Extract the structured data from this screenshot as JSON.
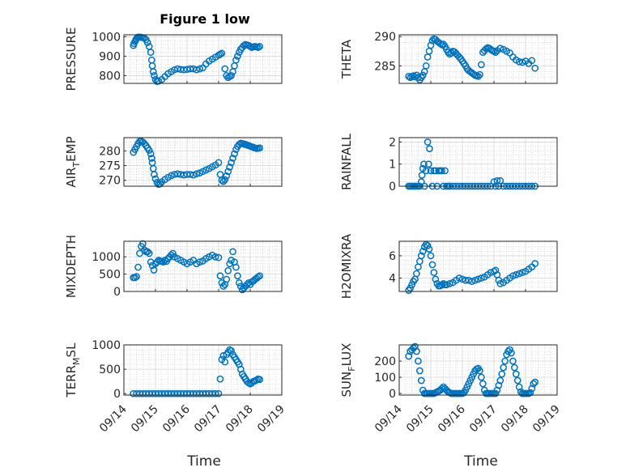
{
  "figure": {
    "title": "Figure 1 low"
  },
  "chart_data": [
    {
      "type": "scatter",
      "ylabel_main": "PRESSURE",
      "ylabel_sub": "",
      "ylabel_tail": "",
      "title": "Figure 1 low",
      "ylim": [
        760,
        1010
      ],
      "yticks": [
        800,
        900,
        1000
      ],
      "x_ticks": [],
      "x": [
        14.3,
        14.32,
        14.35,
        14.38,
        14.4,
        14.43,
        14.46,
        14.5,
        14.55,
        14.6,
        14.65,
        14.7,
        14.75,
        14.8,
        14.85,
        14.88,
        14.9,
        14.93,
        14.96,
        15.0,
        15.05,
        15.1,
        15.2,
        15.3,
        15.4,
        15.5,
        15.6,
        15.7,
        15.8,
        15.9,
        16.0,
        16.1,
        16.2,
        16.3,
        16.4,
        16.5,
        16.6,
        16.7,
        16.8,
        16.9,
        17.0,
        17.05,
        17.1,
        17.2,
        17.25,
        17.3,
        17.35,
        17.4,
        17.45,
        17.5,
        17.55,
        17.6,
        17.65,
        17.7,
        17.75,
        17.8,
        17.85,
        17.9,
        17.95,
        18.0,
        18.05,
        18.1,
        18.15,
        18.2,
        18.25,
        18.3
      ],
      "y": [
        955,
        965,
        975,
        985,
        990,
        997,
        998,
        998,
        997,
        995,
        993,
        985,
        970,
        950,
        920,
        880,
        850,
        820,
        800,
        780,
        770,
        772,
        780,
        795,
        810,
        820,
        830,
        835,
        832,
        830,
        832,
        835,
        835,
        830,
        835,
        840,
        860,
        875,
        885,
        895,
        905,
        910,
        915,
        835,
        800,
        790,
        795,
        800,
        820,
        850,
        880,
        900,
        920,
        935,
        945,
        955,
        960,
        958,
        955,
        950,
        945,
        948,
        950,
        948,
        945,
        950
      ]
    },
    {
      "type": "scatter",
      "ylabel_main": "THETA",
      "ylabel_sub": "",
      "ylabel_tail": "",
      "ylim": [
        282,
        290.3
      ],
      "yticks": [
        285,
        290
      ],
      "x_ticks": [],
      "x": [
        14.3,
        14.35,
        14.4,
        14.45,
        14.5,
        14.55,
        14.6,
        14.65,
        14.7,
        14.75,
        14.8,
        14.85,
        14.9,
        14.95,
        15.0,
        15.05,
        15.1,
        15.15,
        15.2,
        15.25,
        15.3,
        15.35,
        15.4,
        15.45,
        15.5,
        15.55,
        15.6,
        15.65,
        15.7,
        15.75,
        15.8,
        15.85,
        15.9,
        15.95,
        16.0,
        16.05,
        16.1,
        16.15,
        16.2,
        16.25,
        16.3,
        16.35,
        16.4,
        16.45,
        16.5,
        16.55,
        16.6,
        16.65,
        16.7,
        16.75,
        16.8,
        16.85,
        16.9,
        16.95,
        17.0,
        17.05,
        17.1,
        17.2,
        17.3,
        17.4,
        17.5,
        17.6,
        17.7,
        17.8,
        17.9,
        18.0,
        18.1,
        18.2,
        18.3
      ],
      "y": [
        283.2,
        283,
        283.2,
        283.3,
        283.1,
        283.4,
        283,
        282.6,
        283,
        283.4,
        284,
        285,
        286.5,
        287.5,
        288.5,
        289.3,
        289.6,
        289.5,
        289.2,
        289,
        288.8,
        288.6,
        288.7,
        288.3,
        287.8,
        287.3,
        287,
        287.2,
        287.5,
        287.4,
        287.1,
        286.8,
        286.5,
        286.2,
        285.8,
        285.4,
        285,
        284.5,
        284.2,
        284,
        283.8,
        283.6,
        283.4,
        283.3,
        283.2,
        283.5,
        285.2,
        287.3,
        287.6,
        287.9,
        288.1,
        288.0,
        287.8,
        287.6,
        287.5,
        287.3,
        287.6,
        288.0,
        287.8,
        287.5,
        287.2,
        286.5,
        286.0,
        285.7,
        285.6,
        285.8,
        285.4,
        285.9,
        284.6
      ]
    },
    {
      "type": "scatter",
      "ylabel_main": "AIR",
      "ylabel_sub": "T",
      "ylabel_tail": "EMP",
      "ylim": [
        268,
        284.5
      ],
      "yticks": [
        270,
        275,
        280
      ],
      "x_ticks": [],
      "x": [
        14.3,
        14.35,
        14.4,
        14.45,
        14.5,
        14.55,
        14.6,
        14.65,
        14.7,
        14.75,
        14.8,
        14.85,
        14.88,
        14.9,
        14.93,
        14.96,
        15.0,
        15.05,
        15.1,
        15.15,
        15.2,
        15.3,
        15.4,
        15.5,
        15.6,
        15.7,
        15.8,
        15.9,
        16.0,
        16.1,
        16.2,
        16.3,
        16.4,
        16.5,
        16.6,
        16.7,
        16.8,
        16.9,
        17.0,
        17.05,
        17.1,
        17.15,
        17.2,
        17.25,
        17.3,
        17.35,
        17.4,
        17.45,
        17.5,
        17.55,
        17.6,
        17.65,
        17.7,
        17.75,
        17.8,
        17.85,
        17.9,
        17.95,
        18.0,
        18.05,
        18.1,
        18.15,
        18.2,
        18.25,
        18.3
      ],
      "y": [
        279.5,
        280.5,
        281.5,
        282.5,
        283.2,
        283.3,
        283,
        282.5,
        281.8,
        281,
        280.2,
        279,
        277.5,
        276,
        274,
        272,
        270.5,
        269.3,
        268.6,
        268.8,
        269.5,
        270.3,
        271,
        271.6,
        272,
        272.2,
        272,
        271.8,
        272,
        272,
        271.8,
        272.2,
        272.5,
        273,
        273.5,
        274,
        274.6,
        275.2,
        276,
        272,
        270,
        269.6,
        270.2,
        271.5,
        273,
        274.5,
        276,
        277.5,
        279,
        280.5,
        281.5,
        282.2,
        282.6,
        282.5,
        282.3,
        282.2,
        282,
        281.8,
        281.6,
        281.4,
        281.2,
        281,
        280.8,
        280.9,
        281
      ]
    },
    {
      "type": "scatter",
      "ylabel_main": "RAINFALL",
      "ylabel_sub": "",
      "ylabel_tail": "",
      "ylim": [
        0,
        2.2
      ],
      "yticks": [
        0,
        1,
        2
      ],
      "x_ticks": [],
      "x": [
        14.3,
        14.35,
        14.4,
        14.45,
        14.5,
        14.55,
        14.6,
        14.65,
        14.7,
        14.72,
        14.75,
        14.78,
        14.8,
        14.85,
        14.9,
        14.93,
        14.96,
        15.0,
        15.05,
        15.1,
        15.15,
        15.2,
        15.25,
        15.3,
        15.35,
        15.4,
        15.45,
        15.5,
        15.55,
        15.6,
        15.7,
        15.8,
        15.9,
        16.0,
        16.1,
        16.2,
        16.3,
        16.4,
        16.5,
        16.6,
        16.7,
        16.8,
        16.9,
        17.0,
        17.05,
        17.1,
        17.15,
        17.2,
        17.3,
        17.4,
        17.5,
        17.6,
        17.7,
        17.8,
        17.9,
        18.0,
        18.1,
        18.2,
        18.3
      ],
      "y": [
        0,
        0,
        0,
        0,
        0,
        0,
        0,
        0,
        0.2,
        0.5,
        0.8,
        1.0,
        0,
        0.7,
        2.0,
        1.0,
        1.7,
        0.7,
        0,
        0.7,
        0.7,
        0,
        0.7,
        0.7,
        0.7,
        0,
        0.7,
        0,
        0,
        0,
        0,
        0,
        0,
        0,
        0,
        0,
        0,
        0,
        0,
        0,
        0,
        0,
        0,
        0.2,
        0,
        0.25,
        0,
        0.25,
        0,
        0,
        0,
        0,
        0,
        0,
        0,
        0,
        0,
        0,
        0
      ]
    },
    {
      "type": "scatter",
      "ylabel_main": "MIXDEPTH",
      "ylabel_sub": "",
      "ylabel_tail": "",
      "ylim": [
        0,
        1450
      ],
      "yticks": [
        0,
        500,
        1000
      ],
      "x_ticks": [],
      "x": [
        14.3,
        14.35,
        14.4,
        14.45,
        14.5,
        14.55,
        14.6,
        14.65,
        14.7,
        14.75,
        14.8,
        14.85,
        14.9,
        14.95,
        15.0,
        15.05,
        15.1,
        15.15,
        15.2,
        15.25,
        15.3,
        15.35,
        15.4,
        15.45,
        15.5,
        15.55,
        15.6,
        15.7,
        15.8,
        15.9,
        16.0,
        16.1,
        16.2,
        16.3,
        16.4,
        16.5,
        16.6,
        16.7,
        16.8,
        16.9,
        17.0,
        17.05,
        17.1,
        17.15,
        17.2,
        17.25,
        17.3,
        17.35,
        17.4,
        17.45,
        17.5,
        17.55,
        17.6,
        17.65,
        17.7,
        17.75,
        17.8,
        17.85,
        17.9,
        17.95,
        18.0,
        18.05,
        18.1,
        18.15,
        18.2,
        18.25,
        18.3
      ],
      "y": [
        400,
        400,
        430,
        700,
        1100,
        1300,
        1380,
        1200,
        1150,
        1150,
        1100,
        850,
        750,
        620,
        800,
        850,
        900,
        880,
        870,
        850,
        900,
        870,
        950,
        1000,
        1050,
        1100,
        1000,
        950,
        900,
        850,
        800,
        850,
        900,
        800,
        850,
        880,
        950,
        1000,
        1050,
        1000,
        980,
        450,
        250,
        150,
        200,
        350,
        600,
        800,
        900,
        1150,
        850,
        700,
        450,
        250,
        150,
        50,
        100,
        150,
        200,
        250,
        200,
        280,
        300,
        350,
        380,
        420,
        450
      ]
    },
    {
      "type": "scatter",
      "ylabel_main": "H2OMIXRA",
      "ylabel_sub": "",
      "ylabel_tail": "",
      "ylim": [
        2.8,
        7.3
      ],
      "yticks": [
        4,
        6
      ],
      "x_ticks": [],
      "x": [
        14.3,
        14.35,
        14.4,
        14.45,
        14.5,
        14.55,
        14.6,
        14.65,
        14.7,
        14.75,
        14.8,
        14.85,
        14.9,
        14.95,
        15.0,
        15.05,
        15.1,
        15.15,
        15.2,
        15.25,
        15.3,
        15.35,
        15.4,
        15.45,
        15.5,
        15.6,
        15.7,
        15.8,
        15.9,
        16.0,
        16.1,
        16.2,
        16.3,
        16.4,
        16.5,
        16.6,
        16.7,
        16.8,
        16.9,
        17.0,
        17.05,
        17.1,
        17.15,
        17.2,
        17.3,
        17.4,
        17.5,
        17.6,
        17.7,
        17.8,
        17.9,
        18.0,
        18.1,
        18.2,
        18.3
      ],
      "y": [
        2.9,
        3.1,
        3.4,
        3.7,
        3.9,
        4.4,
        5.0,
        5.5,
        6.0,
        6.4,
        6.8,
        7.0,
        6.9,
        6.6,
        6.0,
        5.2,
        4.5,
        3.9,
        3.5,
        3.3,
        3.3,
        3.4,
        3.5,
        3.4,
        3.4,
        3.5,
        3.6,
        3.8,
        4.0,
        3.9,
        3.8,
        3.8,
        3.7,
        3.8,
        3.9,
        4.0,
        4.1,
        4.3,
        4.5,
        4.6,
        4.7,
        4.3,
        3.8,
        3.5,
        3.6,
        3.8,
        4.0,
        4.2,
        4.3,
        4.4,
        4.5,
        4.6,
        4.8,
        5.0,
        5.3
      ]
    },
    {
      "type": "scatter",
      "ylabel_main": "TERR",
      "ylabel_sub": "M",
      "ylabel_tail": "SL",
      "ylim": [
        -30,
        1000
      ],
      "yticks": [
        0,
        500,
        1000
      ],
      "x_ticks": [
        "09/14",
        "09/15",
        "09/16",
        "09/17",
        "09/18",
        "09/19"
      ],
      "x": [
        14.3,
        14.4,
        14.5,
        14.6,
        14.7,
        14.8,
        14.9,
        15.0,
        15.1,
        15.2,
        15.3,
        15.4,
        15.5,
        15.6,
        15.7,
        15.8,
        15.9,
        16.0,
        16.1,
        16.2,
        16.3,
        16.4,
        16.5,
        16.6,
        16.7,
        16.8,
        16.9,
        17.0,
        17.05,
        17.1,
        17.15,
        17.2,
        17.25,
        17.3,
        17.35,
        17.4,
        17.45,
        17.5,
        17.55,
        17.6,
        17.65,
        17.7,
        17.75,
        17.8,
        17.85,
        17.9,
        17.95,
        18.0,
        18.05,
        18.1,
        18.15,
        18.2,
        18.25,
        18.3
      ],
      "y": [
        0,
        0,
        0,
        0,
        0,
        0,
        0,
        0,
        0,
        0,
        0,
        0,
        0,
        0,
        0,
        0,
        0,
        0,
        0,
        0,
        0,
        0,
        0,
        0,
        0,
        0,
        0,
        0,
        300,
        700,
        780,
        650,
        800,
        850,
        900,
        880,
        800,
        750,
        700,
        650,
        600,
        500,
        400,
        350,
        300,
        250,
        220,
        200,
        220,
        250,
        260,
        280,
        300,
        290
      ]
    },
    {
      "type": "scatter",
      "ylabel_main": "SUN",
      "ylabel_sub": "F",
      "ylabel_tail": "LUX",
      "ylim": [
        -10,
        300
      ],
      "yticks": [
        0,
        100,
        200
      ],
      "x_ticks": [
        "09/14",
        "09/15",
        "09/16",
        "09/17",
        "09/18",
        "09/19"
      ],
      "x": [
        14.3,
        14.35,
        14.4,
        14.45,
        14.5,
        14.55,
        14.6,
        14.65,
        14.7,
        14.75,
        14.8,
        14.85,
        14.9,
        14.95,
        15.0,
        15.05,
        15.1,
        15.15,
        15.2,
        15.25,
        15.3,
        15.35,
        15.4,
        15.45,
        15.5,
        15.55,
        15.6,
        15.65,
        15.7,
        15.75,
        15.8,
        15.85,
        15.9,
        15.95,
        16.0,
        16.05,
        16.1,
        16.15,
        16.2,
        16.25,
        16.3,
        16.35,
        16.4,
        16.45,
        16.5,
        16.55,
        16.6,
        16.65,
        16.7,
        16.75,
        16.8,
        16.85,
        16.9,
        16.95,
        17.0,
        17.05,
        17.1,
        17.15,
        17.2,
        17.25,
        17.3,
        17.35,
        17.4,
        17.45,
        17.5,
        17.55,
        17.6,
        17.65,
        17.7,
        17.75,
        17.8,
        17.85,
        17.9,
        17.95,
        18.0,
        18.05,
        18.1,
        18.15,
        18.2,
        18.25,
        18.3
      ],
      "y": [
        230,
        260,
        270,
        280,
        290,
        260,
        200,
        140,
        80,
        20,
        0,
        0,
        0,
        0,
        0,
        0,
        0,
        5,
        10,
        15,
        20,
        30,
        40,
        30,
        20,
        10,
        5,
        0,
        0,
        0,
        0,
        0,
        0,
        0,
        0,
        5,
        20,
        40,
        60,
        80,
        100,
        120,
        140,
        150,
        155,
        140,
        100,
        60,
        20,
        0,
        0,
        0,
        0,
        0,
        0,
        0,
        20,
        50,
        80,
        120,
        160,
        200,
        240,
        260,
        270,
        250,
        200,
        160,
        120,
        80,
        40,
        10,
        0,
        0,
        0,
        0,
        0,
        5,
        30,
        60,
        70
      ]
    }
  ],
  "xaxis_label": "Time"
}
